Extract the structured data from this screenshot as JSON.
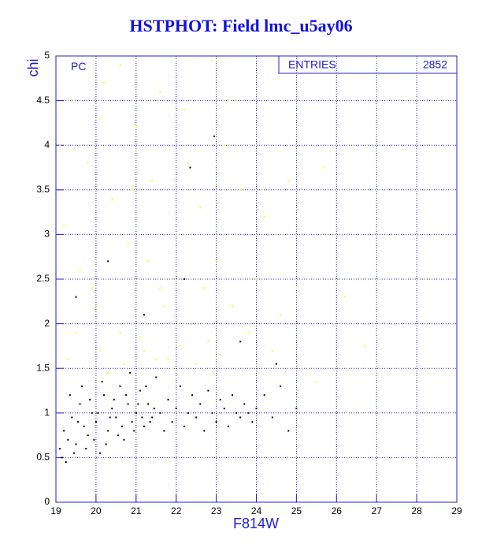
{
  "chart_data": {
    "type": "scatter",
    "title": "HSTPHOT: Field lmc_u5ay06",
    "xlabel": "F814W",
    "ylabel": "chi",
    "annotation": "PC",
    "stats": {
      "label": "ENTRIES",
      "value": 2852
    },
    "xlim": [
      19,
      29
    ],
    "ylim": [
      0,
      5
    ],
    "xticks": [
      19,
      20,
      21,
      22,
      23,
      24,
      25,
      26,
      27,
      28,
      29
    ],
    "yticks": [
      0,
      0.5,
      1,
      1.5,
      2,
      2.5,
      3,
      3.5,
      4,
      4.5,
      5
    ],
    "grid": true,
    "series": [
      {
        "color": "#ffff00",
        "x": [
          19.2,
          19.4,
          19.6,
          19.8,
          20.0,
          20.2,
          20.4,
          20.6,
          20.8,
          21.0,
          21.2,
          21.4,
          21.6,
          21.8,
          22.0,
          22.2,
          22.4,
          22.6,
          22.8,
          23.0,
          23.2,
          23.4,
          23.6,
          23.8,
          24.0,
          24.2,
          24.4,
          24.6,
          24.8,
          25.0,
          25.5,
          25.7,
          26.2,
          26.7,
          19.3,
          19.5,
          19.7,
          19.9,
          20.1,
          20.3,
          20.5,
          20.7,
          20.9,
          21.1,
          21.3,
          21.5,
          21.7,
          21.9,
          22.1,
          22.3,
          22.5,
          22.7,
          22.9,
          23.1,
          19.1,
          20.6,
          21.6,
          22.9,
          23.3,
          20.1
        ],
        "y": [
          3.1,
          4.5,
          2.6,
          3.8,
          2.2,
          4.7,
          3.4,
          1.9,
          2.9,
          4.2,
          1.7,
          3.6,
          2.4,
          1.6,
          3.0,
          4.4,
          2.0,
          3.3,
          1.8,
          2.7,
          4.0,
          2.2,
          3.5,
          1.9,
          2.5,
          3.2,
          1.7,
          2.1,
          3.6,
          2.4,
          1.35,
          3.75,
          2.3,
          1.75,
          1.6,
          1.9,
          1.5,
          2.4,
          1.7,
          1.45,
          2.0,
          1.55,
          3.5,
          1.85,
          2.7,
          1.6,
          2.2,
          1.5,
          1.75,
          3.8,
          1.55,
          2.4,
          1.45,
          1.65,
          4.0,
          4.9,
          4.6,
          4.95,
          4.5,
          4.3
        ]
      },
      {
        "color": "#000000",
        "x": [
          19.1,
          19.2,
          19.3,
          19.4,
          19.5,
          19.6,
          19.7,
          19.8,
          19.9,
          20.0,
          20.1,
          20.2,
          20.3,
          20.4,
          20.5,
          20.6,
          20.7,
          20.8,
          20.9,
          21.0,
          21.1,
          21.2,
          21.3,
          21.4,
          21.5,
          21.6,
          21.7,
          21.8,
          21.9,
          22.0,
          22.1,
          22.2,
          22.3,
          22.4,
          22.5,
          22.6,
          22.7,
          22.8,
          22.9,
          23.0,
          23.1,
          23.2,
          23.3,
          23.4,
          23.5,
          23.6,
          23.7,
          23.8,
          23.9,
          24.0,
          24.2,
          24.4,
          24.6,
          24.8,
          25.0,
          19.15,
          19.25,
          19.35,
          19.45,
          19.55,
          19.65,
          19.75,
          19.85,
          19.95,
          20.05,
          20.15,
          20.25,
          20.35,
          20.45,
          20.55,
          20.65,
          20.75,
          20.85,
          20.95,
          21.05,
          21.15,
          21.25,
          21.35,
          21.45,
          22.35,
          22.95,
          20.3,
          21.2,
          19.5,
          22.2,
          23.6,
          24.5
        ],
        "y": [
          0.6,
          0.8,
          0.7,
          0.95,
          0.65,
          1.1,
          0.85,
          0.75,
          1.0,
          0.9,
          0.55,
          1.2,
          0.8,
          1.05,
          0.95,
          1.3,
          0.7,
          1.1,
          0.9,
          1.0,
          1.25,
          0.85,
          1.1,
          0.95,
          1.4,
          1.0,
          0.8,
          1.15,
          0.9,
          1.05,
          1.3,
          0.85,
          1.0,
          1.2,
          0.95,
          1.1,
          0.8,
          1.25,
          1.0,
          0.9,
          1.15,
          1.05,
          0.85,
          1.2,
          1.0,
          0.95,
          1.1,
          1.0,
          0.9,
          1.05,
          1.2,
          0.95,
          1.3,
          0.8,
          1.05,
          0.5,
          0.45,
          1.2,
          0.55,
          0.9,
          1.3,
          0.6,
          1.15,
          0.7,
          1.0,
          1.35,
          0.65,
          0.95,
          1.15,
          0.75,
          0.85,
          1.2,
          1.45,
          0.8,
          1.1,
          0.95,
          1.3,
          0.9,
          1.05,
          3.75,
          4.1,
          2.7,
          2.1,
          2.3,
          2.5,
          1.8,
          1.55
        ]
      }
    ]
  }
}
